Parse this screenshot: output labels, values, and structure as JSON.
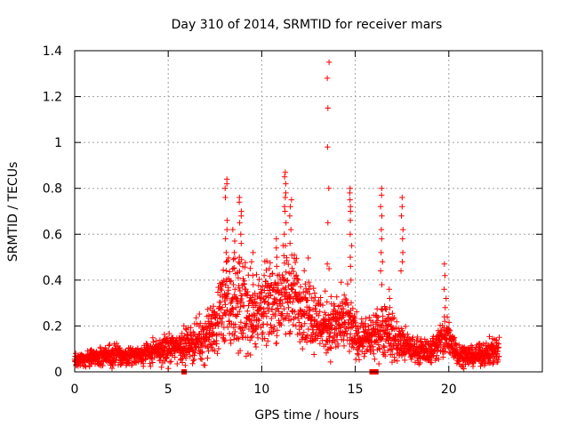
{
  "chart_data": {
    "type": "scatter",
    "title": "Day 310 of 2014, SRMTID for receiver mars",
    "xlabel": "GPS time / hours",
    "ylabel": "SRMTID / TECUs",
    "xlim": [
      0,
      25
    ],
    "ylim": [
      0,
      1.4
    ],
    "xticks": [
      0,
      5,
      10,
      15,
      20
    ],
    "xtick_labels": [
      "0",
      "5",
      "10",
      "15",
      "20"
    ],
    "yticks": [
      0,
      0.2,
      0.4,
      0.6,
      0.8,
      1,
      1.2,
      1.4
    ],
    "ytick_labels": [
      "0",
      "0.2",
      "0.4",
      "0.6",
      "0.8",
      "1",
      "1.2",
      "1.4"
    ],
    "grid": true,
    "marker": "+",
    "color": "#ff0000",
    "x_range_data": [
      0,
      22.7
    ],
    "series": [
      {
        "name": "SRMTID",
        "envelope": [
          [
            0,
            0.05,
            0.02
          ],
          [
            0.5,
            0.055,
            0.02
          ],
          [
            1,
            0.06,
            0.02
          ],
          [
            1.5,
            0.065,
            0.025
          ],
          [
            2,
            0.075,
            0.03
          ],
          [
            2.5,
            0.07,
            0.025
          ],
          [
            3,
            0.07,
            0.025
          ],
          [
            3.5,
            0.075,
            0.025
          ],
          [
            4,
            0.085,
            0.03
          ],
          [
            4.5,
            0.09,
            0.035
          ],
          [
            5,
            0.1,
            0.04
          ],
          [
            5.5,
            0.11,
            0.04
          ],
          [
            6,
            0.12,
            0.045
          ],
          [
            6.5,
            0.13,
            0.05
          ],
          [
            7,
            0.15,
            0.06
          ],
          [
            7.5,
            0.2,
            0.08
          ],
          [
            8,
            0.3,
            0.12
          ],
          [
            8.5,
            0.28,
            0.12
          ],
          [
            9,
            0.3,
            0.13
          ],
          [
            9.5,
            0.25,
            0.1
          ],
          [
            10,
            0.28,
            0.1
          ],
          [
            10.5,
            0.3,
            0.1
          ],
          [
            11,
            0.32,
            0.11
          ],
          [
            11.5,
            0.35,
            0.12
          ],
          [
            12,
            0.3,
            0.1
          ],
          [
            12.5,
            0.28,
            0.1
          ],
          [
            13,
            0.22,
            0.08
          ],
          [
            13.5,
            0.2,
            0.08
          ],
          [
            14,
            0.2,
            0.08
          ],
          [
            14.5,
            0.22,
            0.09
          ],
          [
            15,
            0.16,
            0.06
          ],
          [
            15.5,
            0.14,
            0.05
          ],
          [
            16,
            0.15,
            0.05
          ],
          [
            16.5,
            0.2,
            0.08
          ],
          [
            17,
            0.15,
            0.06
          ],
          [
            17.5,
            0.12,
            0.05
          ],
          [
            18,
            0.1,
            0.035
          ],
          [
            18.5,
            0.09,
            0.03
          ],
          [
            19,
            0.09,
            0.03
          ],
          [
            19.5,
            0.13,
            0.05
          ],
          [
            20,
            0.15,
            0.06
          ],
          [
            20.5,
            0.08,
            0.03
          ],
          [
            21,
            0.07,
            0.025
          ],
          [
            21.5,
            0.07,
            0.025
          ],
          [
            22,
            0.08,
            0.03
          ],
          [
            22.7,
            0.1,
            0.04
          ]
        ],
        "spikes": [
          {
            "x": 8.1,
            "values": [
              0.84,
              0.82,
              0.8,
              0.76,
              0.66,
              0.62,
              0.58,
              0.52,
              0.48,
              0.44
            ]
          },
          {
            "x": 8.5,
            "values": [
              0.62,
              0.57,
              0.52,
              0.49,
              0.45
            ]
          },
          {
            "x": 8.85,
            "values": [
              0.76,
              0.74,
              0.7,
              0.68,
              0.65,
              0.6,
              0.56,
              0.5
            ]
          },
          {
            "x": 9.5,
            "values": [
              0.52,
              0.48,
              0.42,
              0.38
            ]
          },
          {
            "x": 10.8,
            "values": [
              0.58,
              0.54,
              0.5,
              0.46,
              0.42
            ]
          },
          {
            "x": 11.25,
            "values": [
              0.87,
              0.85,
              0.82,
              0.78,
              0.76,
              0.72,
              0.7,
              0.65,
              0.6,
              0.55
            ]
          },
          {
            "x": 11.55,
            "values": [
              0.75,
              0.72,
              0.68,
              0.62,
              0.56
            ]
          },
          {
            "x": 13.55,
            "values": [
              1.35,
              1.28,
              1.15,
              0.98,
              0.8,
              0.65,
              0.47,
              0.45
            ]
          },
          {
            "x": 14.75,
            "values": [
              0.8,
              0.78,
              0.75,
              0.72,
              0.7,
              0.66,
              0.6,
              0.55,
              0.5,
              0.46,
              0.4
            ]
          },
          {
            "x": 16.4,
            "values": [
              0.8,
              0.77,
              0.72,
              0.68,
              0.62,
              0.58,
              0.52,
              0.48,
              0.44,
              0.38
            ]
          },
          {
            "x": 16.85,
            "values": [
              0.36,
              0.32,
              0.28,
              0.25
            ]
          },
          {
            "x": 17.5,
            "values": [
              0.76,
              0.72,
              0.68,
              0.62,
              0.58,
              0.52,
              0.48,
              0.44
            ]
          },
          {
            "x": 19.8,
            "values": [
              0.47,
              0.42,
              0.36,
              0.32,
              0.28,
              0.24,
              0.22
            ]
          }
        ]
      }
    ],
    "bottom_markers": [
      5.85,
      15.9,
      16.1
    ]
  }
}
